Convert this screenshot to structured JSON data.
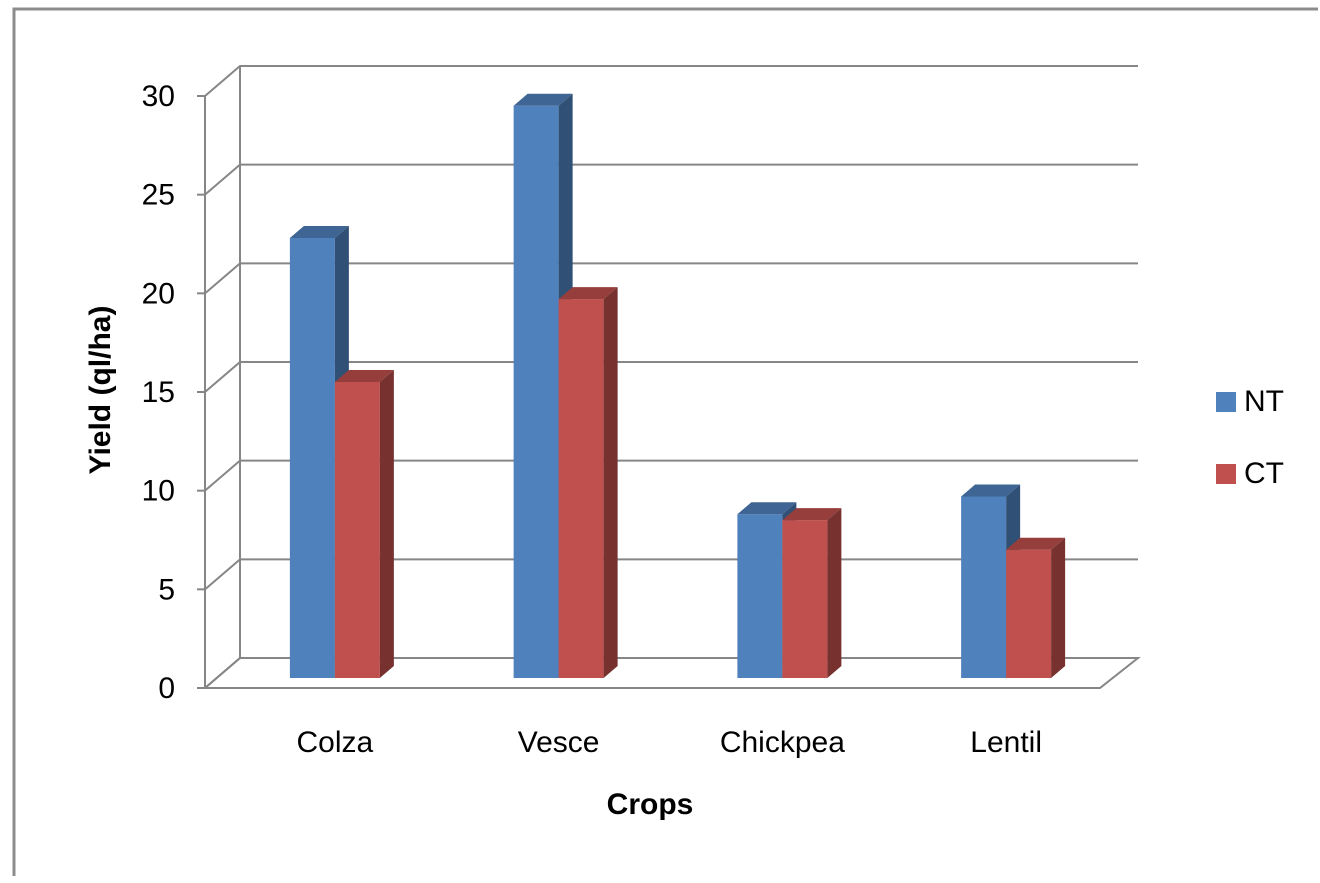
{
  "colors": {
    "NT": "#4F81BD",
    "CT": "#C0504D",
    "gridline": "#868686",
    "frame": "#7f7f7f"
  },
  "chart_data": {
    "type": "bar",
    "style": "3d-clustered-column",
    "title": "",
    "xlabel": "Crops",
    "ylabel": "Yield (ql/ha)",
    "ylim": [
      0,
      30
    ],
    "yticks": [
      0,
      5,
      10,
      15,
      20,
      25,
      30
    ],
    "grid": true,
    "legend_position": "right",
    "categories": [
      "Colza",
      "Vesce",
      "Chickpea",
      "Lentil"
    ],
    "series": [
      {
        "name": "NT",
        "values": [
          22.3,
          29,
          8.3,
          9.2
        ]
      },
      {
        "name": "CT",
        "values": [
          15,
          19.2,
          8,
          6.5
        ]
      }
    ]
  }
}
